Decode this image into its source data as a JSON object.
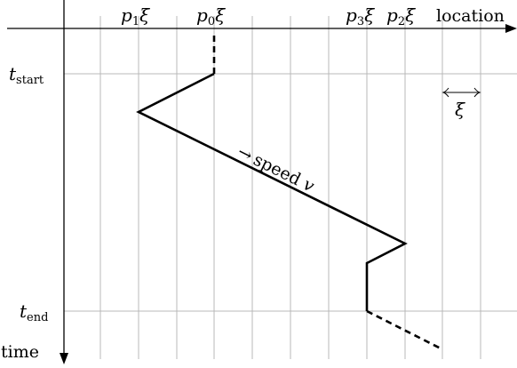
{
  "axes": {
    "x_label": "location",
    "y_label": "time",
    "t_start": {
      "base": "t",
      "sub": "start"
    },
    "t_end": {
      "base": "t",
      "sub": "end"
    }
  },
  "top_labels": [
    {
      "p": "p",
      "sub": "1",
      "xi": "ξ"
    },
    {
      "p": "p",
      "sub": "0",
      "xi": "ξ"
    },
    {
      "p": "p",
      "sub": "3",
      "xi": "ξ"
    },
    {
      "p": "p",
      "sub": "2",
      "xi": "ξ"
    }
  ],
  "xi_marker": "ξ",
  "speed": {
    "arrow": "→",
    "text": "speed",
    "var": "v"
  }
}
